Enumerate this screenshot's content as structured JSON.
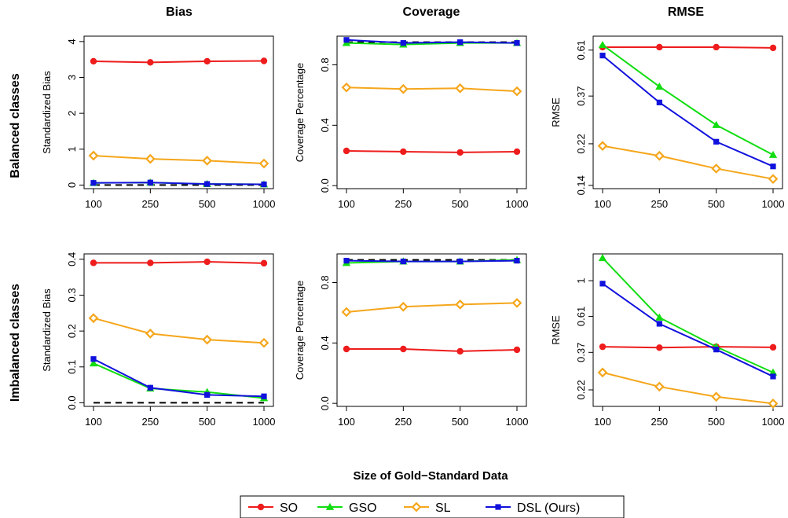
{
  "figure": {
    "column_titles": [
      "Bias",
      "Coverage",
      "RMSE"
    ],
    "row_titles": [
      "Balanced classes",
      "Imbalanced classes"
    ],
    "shared_xlabel": "Size of Gold−Standard Data"
  },
  "legend": {
    "entries": [
      {
        "label": "SO",
        "color": "#ee1c1c",
        "marker": "circle"
      },
      {
        "label": "GSO",
        "color": "#11dd11",
        "marker": "triangle"
      },
      {
        "label": "SL",
        "color": "#f5a61b",
        "marker": "diamond-open"
      },
      {
        "label": "DSL (Ours)",
        "color": "#1111dd",
        "marker": "square"
      }
    ]
  },
  "chart_data": [
    {
      "type": "line",
      "panel": "balanced-bias",
      "title": "Bias",
      "xlabel": "",
      "ylabel": "Standardized Bias",
      "x": [
        100,
        250,
        500,
        1000
      ],
      "x_tick_labels": [
        "100",
        "250",
        "500",
        "1000"
      ],
      "y_scale": "linear",
      "yticks": [
        0,
        1,
        2,
        3,
        4
      ],
      "y_tick_labels": [
        "0",
        "1",
        "2",
        "3",
        "4"
      ],
      "ylim": [
        -0.1,
        4.15
      ],
      "reference_line": 0,
      "series": [
        {
          "name": "SO",
          "values": [
            3.45,
            3.42,
            3.45,
            3.46
          ]
        },
        {
          "name": "GSO",
          "values": [
            0.06,
            0.07,
            0.03,
            0.02
          ]
        },
        {
          "name": "SL",
          "values": [
            0.82,
            0.73,
            0.68,
            0.6
          ]
        },
        {
          "name": "DSL (Ours)",
          "values": [
            0.06,
            0.07,
            0.03,
            0.02
          ]
        }
      ]
    },
    {
      "type": "line",
      "panel": "balanced-coverage",
      "title": "Coverage",
      "xlabel": "",
      "ylabel": "Coverage Percentage",
      "x": [
        100,
        250,
        500,
        1000
      ],
      "x_tick_labels": [
        "100",
        "250",
        "500",
        "1000"
      ],
      "y_scale": "linear",
      "yticks": [
        0,
        0.4,
        0.8
      ],
      "y_tick_labels": [
        "0.0",
        "0.4",
        "0.8"
      ],
      "ylim": [
        -0.02,
        0.99
      ],
      "reference_line": 0.95,
      "series": [
        {
          "name": "SO",
          "values": [
            0.23,
            0.225,
            0.22,
            0.225
          ]
        },
        {
          "name": "GSO",
          "values": [
            0.945,
            0.935,
            0.945,
            0.945
          ]
        },
        {
          "name": "SL",
          "values": [
            0.65,
            0.64,
            0.645,
            0.625
          ]
        },
        {
          "name": "DSL (Ours)",
          "values": [
            0.965,
            0.945,
            0.95,
            0.945
          ]
        }
      ]
    },
    {
      "type": "line",
      "panel": "balanced-rmse",
      "title": "RMSE",
      "xlabel": "",
      "ylabel": "RMSE",
      "x": [
        100,
        250,
        500,
        1000
      ],
      "x_tick_labels": [
        "100",
        "250",
        "500",
        "1000"
      ],
      "y_scale": "log",
      "yticks": [
        0.14,
        0.22,
        0.37,
        0.61
      ],
      "y_tick_labels": [
        "0.14",
        "0.22",
        "0.37",
        "0.61"
      ],
      "ylim": [
        0.135,
        0.71
      ],
      "series": [
        {
          "name": "SO",
          "values": [
            0.63,
            0.63,
            0.63,
            0.625
          ]
        },
        {
          "name": "GSO",
          "values": [
            0.645,
            0.41,
            0.27,
            0.195
          ]
        },
        {
          "name": "SL",
          "values": [
            0.215,
            0.193,
            0.168,
            0.15
          ]
        },
        {
          "name": "DSL (Ours)",
          "values": [
            0.575,
            0.345,
            0.225,
            0.172
          ]
        }
      ]
    },
    {
      "type": "line",
      "panel": "imbalanced-bias",
      "title": "",
      "xlabel": "",
      "ylabel": "Standardized Bias",
      "x": [
        100,
        250,
        500,
        1000
      ],
      "x_tick_labels": [
        "100",
        "250",
        "500",
        "1000"
      ],
      "y_scale": "linear",
      "yticks": [
        0,
        0.1,
        0.2,
        0.3,
        0.4
      ],
      "y_tick_labels": [
        "0.0",
        "0.1",
        "0.2",
        "0.3",
        "0.4"
      ],
      "ylim": [
        -0.01,
        0.415
      ],
      "reference_line": 0,
      "series": [
        {
          "name": "SO",
          "values": [
            0.39,
            0.39,
            0.393,
            0.389
          ]
        },
        {
          "name": "GSO",
          "values": [
            0.11,
            0.04,
            0.03,
            0.013
          ]
        },
        {
          "name": "SL",
          "values": [
            0.236,
            0.193,
            0.176,
            0.167
          ]
        },
        {
          "name": "DSL (Ours)",
          "values": [
            0.122,
            0.042,
            0.022,
            0.018
          ]
        }
      ]
    },
    {
      "type": "line",
      "panel": "imbalanced-coverage",
      "title": "",
      "xlabel": "",
      "ylabel": "Coverage Percentage",
      "x": [
        100,
        250,
        500,
        1000
      ],
      "x_tick_labels": [
        "100",
        "250",
        "500",
        "1000"
      ],
      "y_scale": "linear",
      "yticks": [
        0,
        0.4,
        0.8
      ],
      "y_tick_labels": [
        "0.0",
        "0.4",
        "0.8"
      ],
      "ylim": [
        -0.02,
        0.99
      ],
      "reference_line": 0.95,
      "series": [
        {
          "name": "SO",
          "values": [
            0.36,
            0.36,
            0.345,
            0.355
          ]
        },
        {
          "name": "GSO",
          "values": [
            0.93,
            0.94,
            0.94,
            0.95
          ]
        },
        {
          "name": "SL",
          "values": [
            0.605,
            0.64,
            0.655,
            0.665
          ]
        },
        {
          "name": "DSL (Ours)",
          "values": [
            0.945,
            0.94,
            0.94,
            0.945
          ]
        }
      ]
    },
    {
      "type": "line",
      "panel": "imbalanced-rmse",
      "title": "",
      "xlabel": "",
      "ylabel": "RMSE",
      "x": [
        100,
        250,
        500,
        1000
      ],
      "x_tick_labels": [
        "100",
        "250",
        "500",
        "1000"
      ],
      "y_scale": "log",
      "yticks": [
        0.22,
        0.37,
        0.61,
        1
      ],
      "y_tick_labels": [
        "0.22",
        "0.37",
        "0.61",
        "1"
      ],
      "ylim": [
        0.175,
        1.45
      ],
      "series": [
        {
          "name": "SO",
          "values": [
            0.4,
            0.395,
            0.4,
            0.397
          ]
        },
        {
          "name": "GSO",
          "values": [
            1.37,
            0.6,
            0.4,
            0.28
          ]
        },
        {
          "name": "SL",
          "values": [
            0.28,
            0.23,
            0.2,
            0.182
          ]
        },
        {
          "name": "DSL (Ours)",
          "values": [
            0.96,
            0.55,
            0.385,
            0.265
          ]
        }
      ]
    }
  ]
}
